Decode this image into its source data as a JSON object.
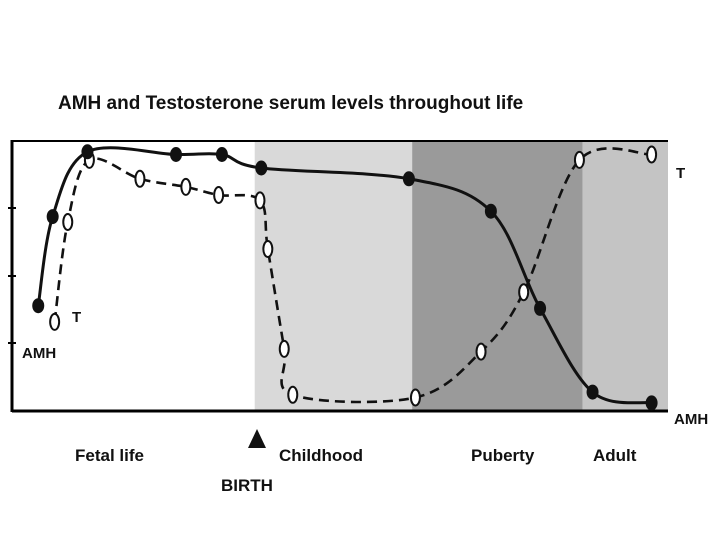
{
  "chart_data": {
    "type": "line",
    "title": "AMH and Testosterone serum levels throughout life",
    "xlabel": "",
    "ylabel": "",
    "xlim": [
      0,
      100
    ],
    "ylim": [
      0,
      100
    ],
    "grid": false,
    "periods": [
      {
        "name": "Fetal life",
        "start": 0,
        "end": 37,
        "shade": "#ffffff"
      },
      {
        "name": "Childhood",
        "start": 37,
        "end": 61,
        "shade": "#d9d9d9"
      },
      {
        "name": "Puberty",
        "start": 61,
        "end": 87,
        "shade": "#9a9a9a"
      },
      {
        "name": "Adult",
        "start": 87,
        "end": 100,
        "shade": "#c4c4c4"
      }
    ],
    "birth": {
      "label": "BIRTH",
      "x": 37
    },
    "series": [
      {
        "name": "AMH",
        "style": "solid",
        "marker": "filled-circle",
        "start_label": "AMH",
        "end_label": "AMH",
        "x": [
          4,
          6.2,
          11.5,
          25,
          32,
          38,
          60.5,
          73,
          80.5,
          88.5,
          97.5
        ],
        "y": [
          39,
          72,
          96,
          95,
          95,
          90,
          86,
          74,
          38,
          7,
          3
        ]
      },
      {
        "name": "T",
        "style": "dashed",
        "marker": "open-oval",
        "start_label": "T",
        "end_label": "T",
        "x": [
          6.5,
          8.5,
          11.8,
          19.5,
          26.5,
          31.5,
          37.8,
          39,
          41.5,
          42.8,
          61.5,
          71.5,
          78,
          86.5,
          97.5
        ],
        "y": [
          33,
          70,
          93,
          86,
          83,
          80,
          78,
          60,
          23,
          6,
          5,
          22,
          44,
          93,
          95
        ]
      }
    ],
    "x_tick_labels": [
      "Fetal life",
      "Childhood",
      "Puberty",
      "Adult"
    ]
  }
}
